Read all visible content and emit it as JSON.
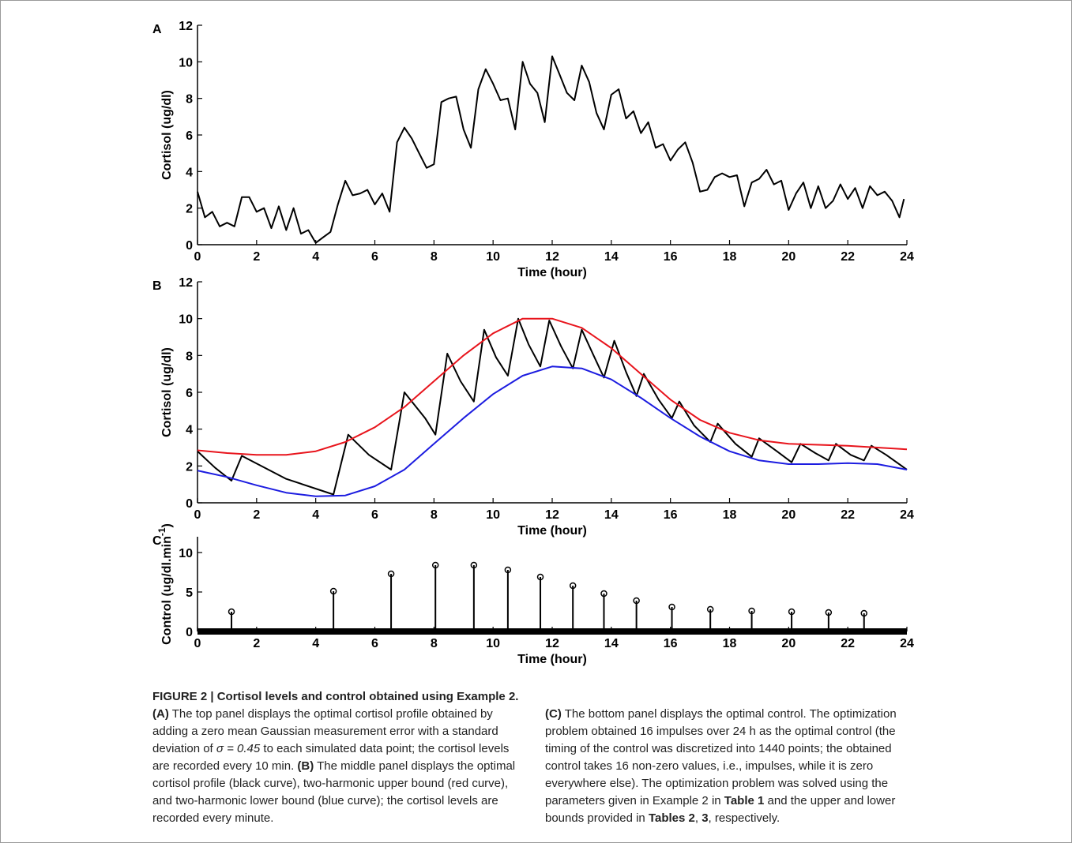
{
  "chart_data": [
    {
      "type": "line",
      "panel": "A",
      "ylabel": "Cortisol (ug/dl)",
      "xlabel": "Time (hour)",
      "xlim": [
        0,
        24
      ],
      "ylim": [
        0,
        12
      ],
      "xticks": [
        0,
        2,
        4,
        6,
        8,
        10,
        12,
        14,
        16,
        18,
        20,
        22,
        24
      ],
      "yticks": [
        0,
        2,
        4,
        6,
        8,
        10,
        12
      ],
      "series": [
        {
          "color": "#000000",
          "x": [
            0,
            0.25,
            0.5,
            0.75,
            1,
            1.25,
            1.5,
            1.75,
            2,
            2.25,
            2.5,
            2.75,
            3,
            3.25,
            3.5,
            3.75,
            4,
            4.25,
            4.5,
            4.75,
            5,
            5.25,
            5.5,
            5.75,
            6,
            6.25,
            6.5,
            6.75,
            7,
            7.25,
            7.5,
            7.75,
            8,
            8.25,
            8.5,
            8.75,
            9,
            9.25,
            9.5,
            9.75,
            10,
            10.25,
            10.5,
            10.75,
            11,
            11.25,
            11.5,
            11.75,
            12,
            12.25,
            12.5,
            12.75,
            13,
            13.25,
            13.5,
            13.75,
            14,
            14.25,
            14.5,
            14.75,
            15,
            15.25,
            15.5,
            15.75,
            16,
            16.25,
            16.5,
            16.75,
            17,
            17.25,
            17.5,
            17.75,
            18,
            18.25,
            18.5,
            18.75,
            19,
            19.25,
            19.5,
            19.75,
            20,
            20.25,
            20.5,
            20.75,
            21,
            21.25,
            21.5,
            21.75,
            22,
            22.25,
            22.5,
            22.75,
            23,
            23.25,
            23.5,
            23.75,
            23.9
          ],
          "values": [
            2.9,
            1.5,
            1.8,
            1.0,
            1.2,
            1.0,
            2.6,
            2.6,
            1.8,
            2.0,
            0.9,
            2.1,
            0.8,
            2.0,
            0.6,
            0.8,
            0.1,
            0.4,
            0.7,
            2.2,
            3.5,
            2.7,
            2.8,
            3.0,
            2.2,
            2.8,
            1.8,
            5.6,
            6.4,
            5.8,
            5.0,
            4.2,
            4.4,
            7.8,
            8.0,
            8.1,
            6.3,
            5.3,
            8.5,
            9.6,
            8.8,
            7.9,
            8.0,
            6.3,
            10.0,
            8.8,
            8.3,
            6.7,
            10.3,
            9.3,
            8.3,
            7.9,
            9.8,
            8.9,
            7.2,
            6.3,
            8.2,
            8.5,
            6.9,
            7.3,
            6.1,
            6.7,
            5.3,
            5.5,
            4.6,
            5.2,
            5.6,
            4.5,
            2.9,
            3.0,
            3.7,
            3.9,
            3.7,
            3.8,
            2.1,
            3.4,
            3.6,
            4.1,
            3.3,
            3.5,
            1.9,
            2.8,
            3.4,
            2.0,
            3.2,
            2.0,
            2.4,
            3.3,
            2.5,
            3.1,
            2.0,
            3.2,
            2.7,
            2.9,
            2.4,
            1.5,
            2.5
          ]
        }
      ]
    },
    {
      "type": "line",
      "panel": "B",
      "ylabel": "Cortisol (ug/dl)",
      "xlabel": "Time (hour)",
      "xlim": [
        0,
        24
      ],
      "ylim": [
        0,
        12
      ],
      "xticks": [
        0,
        2,
        4,
        6,
        8,
        10,
        12,
        14,
        16,
        18,
        20,
        22,
        24
      ],
      "yticks": [
        0,
        2,
        4,
        6,
        8,
        10,
        12
      ],
      "series": [
        {
          "color": "#000000",
          "x": [
            0,
            0.6,
            1.15,
            1.5,
            3.0,
            4.6,
            5.1,
            5.8,
            6.55,
            7.0,
            7.7,
            8.05,
            8.45,
            8.9,
            9.35,
            9.7,
            10.1,
            10.5,
            10.85,
            11.2,
            11.6,
            11.9,
            12.3,
            12.7,
            13.0,
            13.4,
            13.75,
            14.1,
            14.5,
            14.85,
            15.1,
            15.6,
            16.05,
            16.3,
            16.8,
            17.35,
            17.6,
            18.2,
            18.75,
            19.0,
            19.6,
            20.1,
            20.4,
            20.9,
            21.35,
            21.6,
            22.1,
            22.55,
            22.8,
            23.3,
            24
          ],
          "values": [
            2.8,
            1.9,
            1.2,
            2.55,
            1.3,
            0.45,
            3.7,
            2.6,
            1.8,
            6.0,
            4.6,
            3.7,
            8.1,
            6.6,
            5.5,
            9.4,
            7.9,
            6.9,
            10.0,
            8.6,
            7.4,
            9.9,
            8.5,
            7.3,
            9.4,
            8.0,
            6.8,
            8.8,
            7.1,
            5.8,
            7.0,
            5.6,
            4.6,
            5.5,
            4.2,
            3.3,
            4.3,
            3.2,
            2.5,
            3.5,
            2.8,
            2.2,
            3.2,
            2.7,
            2.3,
            3.2,
            2.6,
            2.3,
            3.1,
            2.6,
            1.8
          ]
        },
        {
          "color": "#e8141c",
          "x": [
            0,
            1,
            2,
            3,
            4,
            5,
            6,
            7,
            8,
            9,
            10,
            11,
            12,
            13,
            14,
            15,
            16,
            17,
            18,
            19,
            20,
            21,
            22,
            23,
            24
          ],
          "values": [
            2.85,
            2.7,
            2.6,
            2.6,
            2.8,
            3.3,
            4.1,
            5.2,
            6.6,
            8.0,
            9.2,
            10.0,
            10.0,
            9.5,
            8.4,
            7.0,
            5.6,
            4.5,
            3.8,
            3.4,
            3.2,
            3.15,
            3.1,
            3.0,
            2.9
          ]
        },
        {
          "color": "#1c1ce0",
          "x": [
            0,
            1,
            2,
            3,
            4,
            5,
            6,
            7,
            8,
            9,
            10,
            11,
            12,
            13,
            14,
            15,
            16,
            17,
            18,
            19,
            20,
            21,
            22,
            23,
            24
          ],
          "values": [
            1.75,
            1.4,
            0.95,
            0.55,
            0.35,
            0.4,
            0.9,
            1.8,
            3.2,
            4.6,
            5.9,
            6.9,
            7.4,
            7.3,
            6.7,
            5.7,
            4.6,
            3.6,
            2.8,
            2.3,
            2.1,
            2.1,
            2.15,
            2.1,
            1.8
          ]
        }
      ]
    },
    {
      "type": "stem",
      "panel": "C",
      "ylabel": [
        "Control (ug/dl.min",
        "-1",
        ")"
      ],
      "xlabel": "Time (hour)",
      "xlim": [
        0,
        24
      ],
      "ylim": [
        0,
        12
      ],
      "xticks": [
        0,
        2,
        4,
        6,
        8,
        10,
        12,
        14,
        16,
        18,
        20,
        22,
        24
      ],
      "yticks": [
        0,
        5,
        10
      ],
      "series": [
        {
          "color": "#000000",
          "x": [
            1.15,
            4.6,
            6.55,
            8.05,
            9.35,
            10.5,
            11.6,
            12.7,
            13.75,
            14.85,
            16.05,
            17.35,
            18.75,
            20.1,
            21.35,
            22.55
          ],
          "values": [
            2.5,
            5.1,
            7.3,
            8.4,
            8.4,
            7.8,
            6.9,
            5.8,
            4.8,
            3.9,
            3.1,
            2.8,
            2.6,
            2.5,
            2.4,
            2.3
          ]
        }
      ]
    }
  ],
  "caption": {
    "title": "FIGURE 2 | Cortisol levels and control obtained using Example 2.",
    "left": [
      "(A)",
      " The top panel displays the optimal cortisol profile obtained by adding a zero mean Gaussian measurement error with a standard deviation of ",
      "σ = 0.45",
      " to each simulated data point; the cortisol levels are recorded every 10 min. ",
      "(B)",
      " The middle panel displays the optimal cortisol profile (black curve), two-harmonic upper bound (red curve), and two-harmonic lower bound (blue curve); the cortisol levels are recorded every minute."
    ],
    "right": [
      "(C)",
      " The bottom panel displays the optimal control. The optimization problem obtained 16 impulses over 24 h as the optimal control (the timing of the control was discretized into 1440 points; the obtained control takes 16 non-zero values, i.e., impulses, while it is zero everywhere else). The optimization problem was solved using the parameters given in Example 2 in ",
      "Table 1",
      " and the upper and lower bounds provided in ",
      "Tables 2",
      ", ",
      "3",
      ", respectively."
    ]
  }
}
